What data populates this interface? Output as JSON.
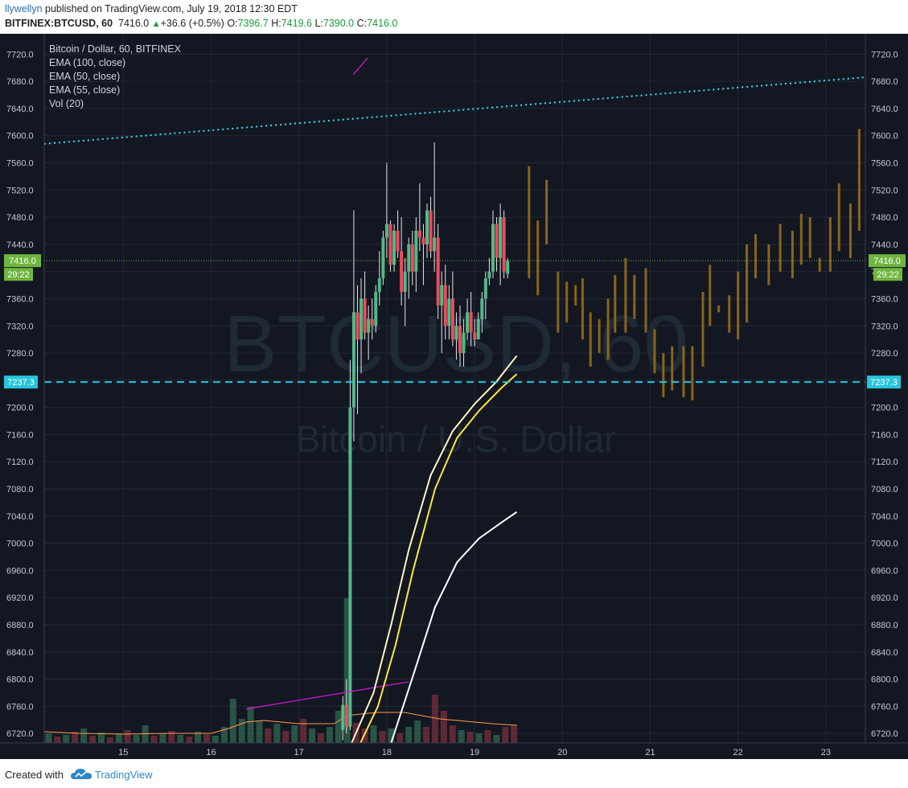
{
  "header": {
    "author": "llywellyn",
    "published": " published on TradingView.com, July 19, 2018 12:30 EDT",
    "symbol": "BITFINEX:BTCUSD, 60",
    "last": "7416.0",
    "change": "+36.6 (+0.5%)",
    "o_label": "O:",
    "o_value": "7396.7",
    "h_label": "H:",
    "h_value": "7419.6",
    "l_label": "L:",
    "l_value": "7390.0",
    "c_label": "C:",
    "c_value": "7416.0"
  },
  "legend": {
    "title": "Bitcoin / Dollar, 60, BITFINEX",
    "ind1": "EMA (100, close)",
    "ind2": "EMA (50, close)",
    "ind3": "EMA (55, close)",
    "ind4": "Vol (20)"
  },
  "watermark": {
    "line1": "BTCUSD, 60",
    "line2": "Bitcoin / U.S. Dollar"
  },
  "footer": {
    "created": "Created with",
    "brand": "TradingView"
  },
  "colors": {
    "background": "#131722",
    "up": "#53b987",
    "down": "#eb4d5c",
    "future_bar": "#8a6418",
    "ema100": "#ffffff",
    "ema50": "#ffe838",
    "ema55": "#fff5c2",
    "trendline": "#34e3f0",
    "hline": "#26c6da",
    "magenta": "#d81bd8",
    "vol_ma": "#ff9a4d",
    "last_price": "#6fb640"
  },
  "chart_data": {
    "type": "candlestick",
    "symbol": "BITFINEX:BTCUSD",
    "interval": "60",
    "y_ticks": [
      7720,
      7680,
      7640,
      7600,
      7560,
      7520,
      7480,
      7440,
      7400,
      7360,
      7320,
      7280,
      7240,
      7200,
      7160,
      7120,
      7080,
      7040,
      7000,
      6960,
      6920,
      6880,
      6840,
      6800,
      6760,
      6720
    ],
    "ylim": [
      6706,
      7750
    ],
    "x_ticks": [
      "15",
      "16",
      "17",
      "18",
      "19",
      "20",
      "21",
      "22",
      "23"
    ],
    "xlim": [
      14.1,
      23.45
    ],
    "price_labels": {
      "last": "7416.0",
      "countdown": "29:22",
      "level": "7237.3"
    },
    "last_price": 7416.0,
    "horizontal_level": 7237.3,
    "trendline": {
      "from": [
        14.1,
        7588
      ],
      "to": [
        23.45,
        7686
      ]
    },
    "magenta_lines": [
      {
        "from": [
          16.4,
          6756
        ],
        "to": [
          18.25,
          6796
        ]
      },
      {
        "from": [
          17.62,
          7690
        ],
        "to": [
          17.78,
          7714
        ]
      }
    ],
    "ema_lines": [
      {
        "name": "EMA (100, close)",
        "points": [
          [
            18.05,
            6706
          ],
          [
            18.3,
            6805
          ],
          [
            18.55,
            6906
          ],
          [
            18.8,
            6972
          ],
          [
            19.05,
            7007
          ],
          [
            19.3,
            7030
          ],
          [
            19.48,
            7046
          ]
        ]
      },
      {
        "name": "EMA (50, close)",
        "points": [
          [
            17.7,
            6706
          ],
          [
            17.9,
            6760
          ],
          [
            18.1,
            6850
          ],
          [
            18.3,
            6960
          ],
          [
            18.55,
            7080
          ],
          [
            18.8,
            7155
          ],
          [
            19.05,
            7195
          ],
          [
            19.3,
            7228
          ],
          [
            19.48,
            7249
          ]
        ]
      },
      {
        "name": "EMA (55, close)",
        "points": [
          [
            17.6,
            6706
          ],
          [
            17.85,
            6780
          ],
          [
            18.05,
            6880
          ],
          [
            18.25,
            6990
          ],
          [
            18.5,
            7100
          ],
          [
            18.75,
            7165
          ],
          [
            19.0,
            7205
          ],
          [
            19.25,
            7238
          ],
          [
            19.48,
            7276
          ]
        ]
      }
    ],
    "candles_t0": 17.5,
    "candles_dt": 0.0417,
    "candles": [
      [
        6725,
        6775,
        6710,
        6762
      ],
      [
        6762,
        6800,
        6720,
        6730
      ],
      [
        6730,
        7270,
        6725,
        7200
      ],
      [
        7200,
        7490,
        7150,
        7340
      ],
      [
        7340,
        7380,
        7190,
        7300
      ],
      [
        7300,
        7390,
        7250,
        7360
      ],
      [
        7360,
        7400,
        7300,
        7310
      ],
      [
        7310,
        7350,
        7270,
        7330
      ],
      [
        7330,
        7360,
        7300,
        7320
      ],
      [
        7320,
        7380,
        7310,
        7370
      ],
      [
        7370,
        7430,
        7350,
        7390
      ],
      [
        7390,
        7460,
        7380,
        7450
      ],
      [
        7450,
        7560,
        7420,
        7470
      ],
      [
        7470,
        7475,
        7400,
        7410
      ],
      [
        7410,
        7470,
        7400,
        7460
      ],
      [
        7460,
        7490,
        7420,
        7430
      ],
      [
        7430,
        7480,
        7350,
        7370
      ],
      [
        7370,
        7420,
        7320,
        7400
      ],
      [
        7400,
        7450,
        7360,
        7440
      ],
      [
        7440,
        7460,
        7380,
        7400
      ],
      [
        7400,
        7480,
        7370,
        7460
      ],
      [
        7460,
        7530,
        7430,
        7450
      ],
      [
        7450,
        7470,
        7380,
        7440
      ],
      [
        7440,
        7500,
        7420,
        7490
      ],
      [
        7490,
        7510,
        7420,
        7430
      ],
      [
        7430,
        7590,
        7400,
        7450
      ],
      [
        7450,
        7470,
        7330,
        7350
      ],
      [
        7350,
        7400,
        7280,
        7380
      ],
      [
        7380,
        7410,
        7300,
        7320
      ],
      [
        7320,
        7380,
        7300,
        7360
      ],
      [
        7360,
        7400,
        7290,
        7300
      ],
      [
        7300,
        7340,
        7270,
        7320
      ],
      [
        7320,
        7350,
        7260,
        7280
      ],
      [
        7280,
        7330,
        7260,
        7310
      ],
      [
        7310,
        7360,
        7300,
        7340
      ],
      [
        7340,
        7370,
        7290,
        7310
      ],
      [
        7310,
        7330,
        7290,
        7300
      ],
      [
        7300,
        7340,
        7300,
        7330
      ],
      [
        7330,
        7370,
        7310,
        7360
      ],
      [
        7360,
        7400,
        7330,
        7390
      ],
      [
        7390,
        7420,
        7380,
        7400
      ],
      [
        7400,
        7490,
        7390,
        7470
      ],
      [
        7470,
        7480,
        7400,
        7420
      ],
      [
        7420,
        7500,
        7380,
        7480
      ],
      [
        7480,
        7490,
        7390,
        7400
      ],
      [
        7396.7,
        7419.6,
        7390.0,
        7416.0
      ]
    ],
    "future_bars": [
      [
        19.62,
        7390,
        7555
      ],
      [
        19.72,
        7365,
        7475
      ],
      [
        19.82,
        7440,
        7535
      ],
      [
        19.95,
        7310,
        7400
      ],
      [
        20.05,
        7325,
        7385
      ],
      [
        20.15,
        7350,
        7380
      ],
      [
        20.23,
        7300,
        7390
      ],
      [
        20.32,
        7260,
        7340
      ],
      [
        20.42,
        7280,
        7330
      ],
      [
        20.52,
        7270,
        7360
      ],
      [
        20.6,
        7310,
        7395
      ],
      [
        20.72,
        7310,
        7420
      ],
      [
        20.82,
        7330,
        7395
      ],
      [
        20.95,
        7310,
        7405
      ],
      [
        21.05,
        7250,
        7315
      ],
      [
        21.15,
        7215,
        7280
      ],
      [
        21.25,
        7225,
        7290
      ],
      [
        21.38,
        7215,
        7290
      ],
      [
        21.48,
        7210,
        7290
      ],
      [
        21.6,
        7260,
        7370
      ],
      [
        21.68,
        7320,
        7410
      ],
      [
        21.78,
        7340,
        7350
      ],
      [
        21.9,
        7310,
        7365
      ],
      [
        22.0,
        7300,
        7400
      ],
      [
        22.1,
        7325,
        7440
      ],
      [
        22.2,
        7390,
        7455
      ],
      [
        22.35,
        7380,
        7440
      ],
      [
        22.48,
        7400,
        7470
      ],
      [
        22.62,
        7390,
        7460
      ],
      [
        22.72,
        7410,
        7485
      ],
      [
        22.82,
        7420,
        7480
      ],
      [
        22.93,
        7400,
        7420
      ],
      [
        23.05,
        7400,
        7480
      ],
      [
        23.15,
        7430,
        7530
      ],
      [
        23.28,
        7420,
        7500
      ],
      [
        23.38,
        7460,
        7610
      ]
    ],
    "volume_series": [
      {
        "x": 14.15,
        "v": 12,
        "up": true
      },
      {
        "x": 14.25,
        "v": 8,
        "up": false
      },
      {
        "x": 14.35,
        "v": 10,
        "up": true
      },
      {
        "x": 14.45,
        "v": 14,
        "up": false
      },
      {
        "x": 14.55,
        "v": 18,
        "up": true
      },
      {
        "x": 14.65,
        "v": 9,
        "up": false
      },
      {
        "x": 14.75,
        "v": 13,
        "up": true
      },
      {
        "x": 14.85,
        "v": 7,
        "up": false
      },
      {
        "x": 14.95,
        "v": 11,
        "up": true
      },
      {
        "x": 15.05,
        "v": 16,
        "up": false
      },
      {
        "x": 15.15,
        "v": 10,
        "up": true
      },
      {
        "x": 15.25,
        "v": 22,
        "up": true
      },
      {
        "x": 15.35,
        "v": 9,
        "up": false
      },
      {
        "x": 15.45,
        "v": 12,
        "up": true
      },
      {
        "x": 15.55,
        "v": 15,
        "up": false
      },
      {
        "x": 15.65,
        "v": 10,
        "up": true
      },
      {
        "x": 15.75,
        "v": 8,
        "up": false
      },
      {
        "x": 15.85,
        "v": 14,
        "up": true
      },
      {
        "x": 15.95,
        "v": 11,
        "up": false
      },
      {
        "x": 16.05,
        "v": 9,
        "up": true
      },
      {
        "x": 16.15,
        "v": 20,
        "up": true
      },
      {
        "x": 16.25,
        "v": 55,
        "up": true
      },
      {
        "x": 16.35,
        "v": 30,
        "up": true
      },
      {
        "x": 16.45,
        "v": 45,
        "up": true
      },
      {
        "x": 16.55,
        "v": 28,
        "up": true
      },
      {
        "x": 16.65,
        "v": 18,
        "up": false
      },
      {
        "x": 16.75,
        "v": 24,
        "up": true
      },
      {
        "x": 16.85,
        "v": 15,
        "up": false
      },
      {
        "x": 16.95,
        "v": 22,
        "up": true
      },
      {
        "x": 17.05,
        "v": 30,
        "up": false
      },
      {
        "x": 17.15,
        "v": 18,
        "up": true
      },
      {
        "x": 17.25,
        "v": 12,
        "up": false
      },
      {
        "x": 17.35,
        "v": 20,
        "up": true
      },
      {
        "x": 17.45,
        "v": 40,
        "up": true
      },
      {
        "x": 17.55,
        "v": 180,
        "up": true
      },
      {
        "x": 17.65,
        "v": 25,
        "up": false
      },
      {
        "x": 17.75,
        "v": 18,
        "up": false
      },
      {
        "x": 17.85,
        "v": 22,
        "up": true
      },
      {
        "x": 17.95,
        "v": 15,
        "up": false
      },
      {
        "x": 18.05,
        "v": 18,
        "up": true
      },
      {
        "x": 18.15,
        "v": 12,
        "up": false
      },
      {
        "x": 18.25,
        "v": 20,
        "up": true
      },
      {
        "x": 18.35,
        "v": 28,
        "up": true
      },
      {
        "x": 18.45,
        "v": 20,
        "up": false
      },
      {
        "x": 18.55,
        "v": 60,
        "up": false
      },
      {
        "x": 18.65,
        "v": 40,
        "up": false
      },
      {
        "x": 18.75,
        "v": 22,
        "up": false
      },
      {
        "x": 18.85,
        "v": 16,
        "up": true
      },
      {
        "x": 18.95,
        "v": 14,
        "up": false
      },
      {
        "x": 19.05,
        "v": 12,
        "up": true
      },
      {
        "x": 19.15,
        "v": 16,
        "up": false
      },
      {
        "x": 19.25,
        "v": 10,
        "up": true
      },
      {
        "x": 19.35,
        "v": 20,
        "up": false
      },
      {
        "x": 19.45,
        "v": 22,
        "up": false
      }
    ],
    "volume_ma": [
      [
        14.1,
        14
      ],
      [
        14.5,
        12
      ],
      [
        15.0,
        11
      ],
      [
        15.5,
        12
      ],
      [
        16.0,
        12
      ],
      [
        16.2,
        18
      ],
      [
        16.4,
        26
      ],
      [
        16.6,
        28
      ],
      [
        16.8,
        26
      ],
      [
        17.0,
        24
      ],
      [
        17.4,
        24
      ],
      [
        17.55,
        34
      ],
      [
        17.7,
        36
      ],
      [
        17.9,
        38
      ],
      [
        18.2,
        38
      ],
      [
        18.4,
        34
      ],
      [
        18.6,
        30
      ],
      [
        18.8,
        28
      ],
      [
        19.0,
        26
      ],
      [
        19.2,
        24
      ],
      [
        19.48,
        22
      ]
    ]
  }
}
